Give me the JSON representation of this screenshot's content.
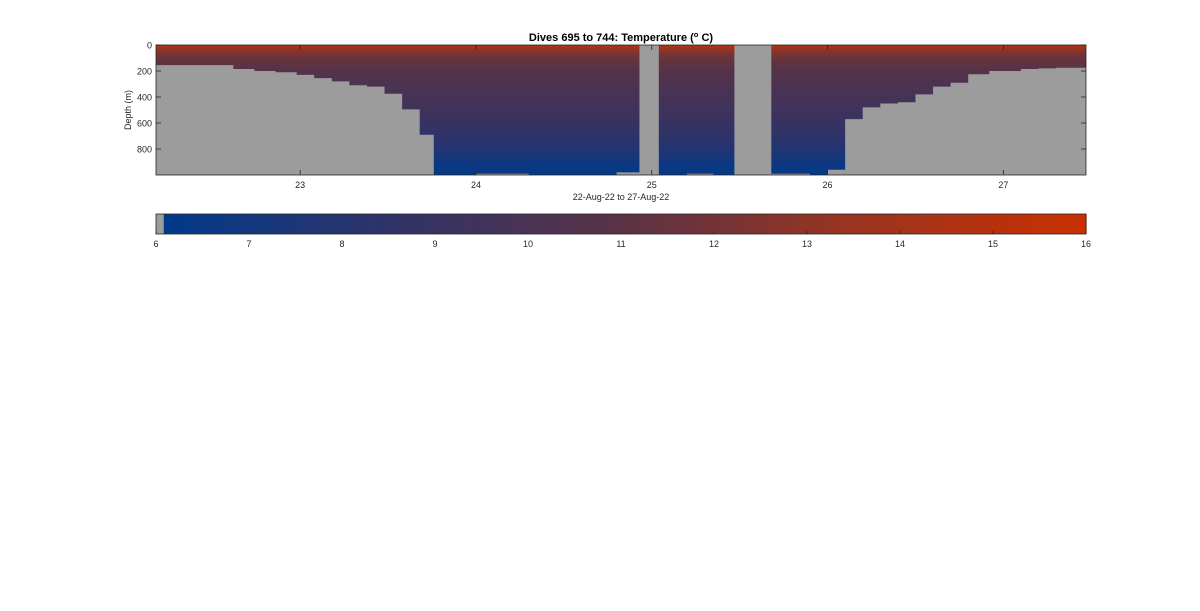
{
  "chart_data": {
    "type": "heatmap",
    "title": {
      "prefix": "Dives 695 to 744: Temperature (",
      "superscript": "o",
      "suffix": " C)"
    },
    "xlabel": "22-Aug-22 to 27-Aug-22",
    "ylabel": "Depth (m)",
    "x_ticks": [
      23,
      24,
      25,
      26,
      27
    ],
    "y_ticks": [
      0,
      200,
      400,
      600,
      800
    ],
    "xlim": [
      22.18,
      27.47
    ],
    "ylim": [
      1000,
      0
    ],
    "y_reversed": true,
    "grid": false,
    "missing_color": "#9c9c9c",
    "colormap": [
      "#003a8c",
      "#2f3368",
      "#5a3346",
      "#9a3420",
      "#c93000"
    ],
    "color_range": [
      6,
      16
    ],
    "colorbar_ticks": [
      6,
      7,
      8,
      9,
      10,
      11,
      12,
      13,
      14,
      15,
      16
    ],
    "colorbar_missing_below": 6.1,
    "temperature_profile": {
      "depth": [
        0,
        15,
        50,
        120,
        200,
        300,
        400,
        500,
        600,
        700,
        800,
        900,
        1000
      ],
      "temp_deep_casts": [
        15.5,
        14.2,
        12.6,
        11.4,
        10.7,
        10.2,
        9.8,
        9.4,
        9.0,
        8.5,
        7.8,
        6.8,
        6.2
      ]
    },
    "data_gaps": [
      {
        "start": 24.93,
        "end": 25.04
      },
      {
        "start": 25.47,
        "end": 25.68
      }
    ],
    "profile_max_depth": {
      "x": [
        22.18,
        22.34,
        22.5,
        22.62,
        22.74,
        22.86,
        22.98,
        23.08,
        23.18,
        23.28,
        23.38,
        23.48,
        23.58,
        23.68,
        23.76,
        24.0,
        24.3,
        24.6,
        24.8,
        25.04,
        25.2,
        25.35,
        25.68,
        25.9,
        26.0,
        26.1,
        26.2,
        26.3,
        26.4,
        26.5,
        26.6,
        26.7,
        26.8,
        26.92,
        27.0,
        27.1,
        27.2,
        27.3,
        27.47
      ],
      "depth": [
        155,
        155,
        155,
        185,
        200,
        210,
        230,
        255,
        280,
        310,
        320,
        375,
        495,
        690,
        1000,
        990,
        1000,
        1000,
        980,
        1000,
        990,
        1000,
        990,
        1000,
        960,
        570,
        480,
        450,
        440,
        380,
        320,
        290,
        225,
        200,
        200,
        185,
        180,
        175,
        175
      ]
    }
  }
}
